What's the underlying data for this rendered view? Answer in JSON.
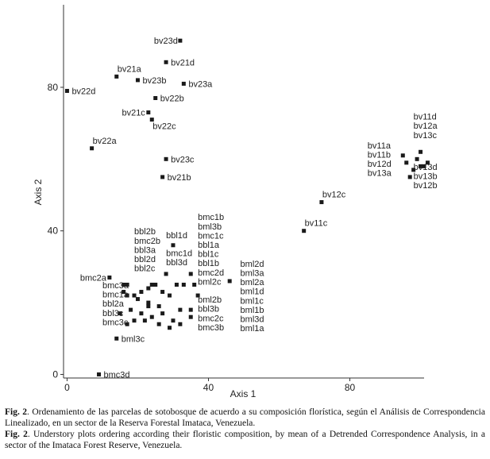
{
  "chart_data": {
    "type": "scatter",
    "title": "",
    "xlabel": "Axis 1",
    "ylabel": "Axis 2",
    "xlim": [
      -1,
      101
    ],
    "ylim": [
      -1,
      103
    ],
    "xticks": [
      0,
      40,
      80
    ],
    "yticks": [
      0,
      40,
      80
    ],
    "grid": false,
    "point_color": "#1a1a1a",
    "points": [
      {
        "x": 32,
        "y": 93,
        "label": "bv23d"
      },
      {
        "x": 28,
        "y": 87,
        "label": "bv21d"
      },
      {
        "x": 14,
        "y": 83,
        "label": "bv21a"
      },
      {
        "x": 20,
        "y": 82,
        "label": "bv23b"
      },
      {
        "x": 33,
        "y": 81,
        "label": "bv23a"
      },
      {
        "x": 0,
        "y": 79,
        "label": "bv22d"
      },
      {
        "x": 25,
        "y": 77,
        "label": "bv22b"
      },
      {
        "x": 23,
        "y": 73,
        "label": "bv21c"
      },
      {
        "x": 24,
        "y": 71,
        "label": "bv22c"
      },
      {
        "x": 7,
        "y": 63,
        "label": "bv22a"
      },
      {
        "x": 28,
        "y": 60,
        "label": "bv23c"
      },
      {
        "x": 27,
        "y": 55,
        "label": "bv21b"
      },
      {
        "x": 72,
        "y": 48,
        "label": "bv12c"
      },
      {
        "x": 67,
        "y": 40,
        "label": "bv11c"
      },
      {
        "x": 12,
        "y": 27,
        "label": "bmc2a"
      },
      {
        "x": 14,
        "y": 10,
        "label": "bml3c"
      },
      {
        "x": 9,
        "y": 0,
        "label": "bmc3d"
      },
      {
        "x": 46,
        "y": 26,
        "label": ""
      },
      {
        "x": 37,
        "y": 22,
        "label": ""
      },
      {
        "x": 36,
        "y": 25,
        "label": ""
      },
      {
        "x": 35,
        "y": 28,
        "label": ""
      },
      {
        "x": 30,
        "y": 36,
        "label": ""
      },
      {
        "x": 28,
        "y": 28,
        "label": ""
      }
    ],
    "cluster_points": [
      {
        "x": 95,
        "y": 61
      },
      {
        "x": 96,
        "y": 59
      },
      {
        "x": 98,
        "y": 57
      },
      {
        "x": 100,
        "y": 62
      },
      {
        "x": 99,
        "y": 60
      },
      {
        "x": 101,
        "y": 58
      },
      {
        "x": 100,
        "y": 58
      },
      {
        "x": 102,
        "y": 59
      },
      {
        "x": 97,
        "y": 55
      },
      {
        "x": 16,
        "y": 25
      },
      {
        "x": 17,
        "y": 25
      },
      {
        "x": 16,
        "y": 23
      },
      {
        "x": 17,
        "y": 22
      },
      {
        "x": 19,
        "y": 22
      },
      {
        "x": 21,
        "y": 23
      },
      {
        "x": 23,
        "y": 24
      },
      {
        "x": 24,
        "y": 25
      },
      {
        "x": 25,
        "y": 25
      },
      {
        "x": 27,
        "y": 23
      },
      {
        "x": 29,
        "y": 22
      },
      {
        "x": 31,
        "y": 25
      },
      {
        "x": 33,
        "y": 25
      },
      {
        "x": 20,
        "y": 21
      },
      {
        "x": 23,
        "y": 20
      },
      {
        "x": 26,
        "y": 19
      },
      {
        "x": 15,
        "y": 17
      },
      {
        "x": 18,
        "y": 18
      },
      {
        "x": 21,
        "y": 17
      },
      {
        "x": 24,
        "y": 16
      },
      {
        "x": 27,
        "y": 17
      },
      {
        "x": 30,
        "y": 15
      },
      {
        "x": 32,
        "y": 18
      },
      {
        "x": 35,
        "y": 18
      },
      {
        "x": 17,
        "y": 14
      },
      {
        "x": 19,
        "y": 15
      },
      {
        "x": 22,
        "y": 15
      },
      {
        "x": 26,
        "y": 14
      },
      {
        "x": 29,
        "y": 13
      },
      {
        "x": 32,
        "y": 14
      },
      {
        "x": 35,
        "y": 16
      },
      {
        "x": 23,
        "y": 19
      }
    ],
    "label_groups": [
      {
        "labels": [
          "bv11a",
          "bv11b",
          "bv12d",
          "bv13a"
        ],
        "x": 85,
        "y": 63,
        "anchor": "start"
      },
      {
        "labels": [
          "bv11d",
          "bv12a",
          "bv13c"
        ],
        "x": 98,
        "y": 71,
        "anchor": "start"
      },
      {
        "labels": [
          "bv13d",
          "bv13b",
          "bv12b"
        ],
        "x": 98,
        "y": 57,
        "anchor": "start"
      },
      {
        "labels": [
          "bbl2b",
          "bmc2b",
          "bbl3a",
          "bbl2d",
          "bbl2c"
        ],
        "x": 19,
        "y": 39,
        "anchor": "start"
      },
      {
        "labels": [
          "bbl1d"
        ],
        "x": 28,
        "y": 38,
        "anchor": "start"
      },
      {
        "labels": [
          "bmc1b",
          "bml3b",
          "bmc1c",
          "bbl1a",
          "bbl1c",
          "bbl1b",
          "bmc2d",
          "bml2c"
        ],
        "x": 37,
        "y": 43,
        "anchor": "start"
      },
      {
        "labels": [
          "bmc1d",
          "bbl3d"
        ],
        "x": 28,
        "y": 33,
        "anchor": "start"
      },
      {
        "labels": [
          "bml2d",
          "bml3a",
          "bml2a",
          "bml1d",
          "bml1c",
          "bml1b",
          "bml3d",
          "bml1a"
        ],
        "x": 49,
        "y": 30,
        "anchor": "start"
      },
      {
        "labels": [
          "bmc3a",
          "bmc1a",
          "bbl2a",
          "bbl3c",
          "bmc3c"
        ],
        "x": 10,
        "y": 24,
        "anchor": "start"
      },
      {
        "labels": [
          "bml2b",
          "bbl3b",
          "bmc2c",
          "bmc3b"
        ],
        "x": 37,
        "y": 20,
        "anchor": "start"
      }
    ]
  },
  "caption": {
    "es_prefix": "Fig. 2",
    "es_text": ". Ordenamiento de las parcelas de sotobosque de acuerdo a su composición florística, según el Análisis de Correspondencia Linealizado, en un sector de la Reserva Forestal Imataca, Venezuela.",
    "en_prefix": "Fig. 2",
    "en_text": ". Understory plots ordering according their floristic composition, by mean of a Detrended Correspondence Analysis, in a sector of the Imataca Forest Reserve, Venezuela."
  }
}
